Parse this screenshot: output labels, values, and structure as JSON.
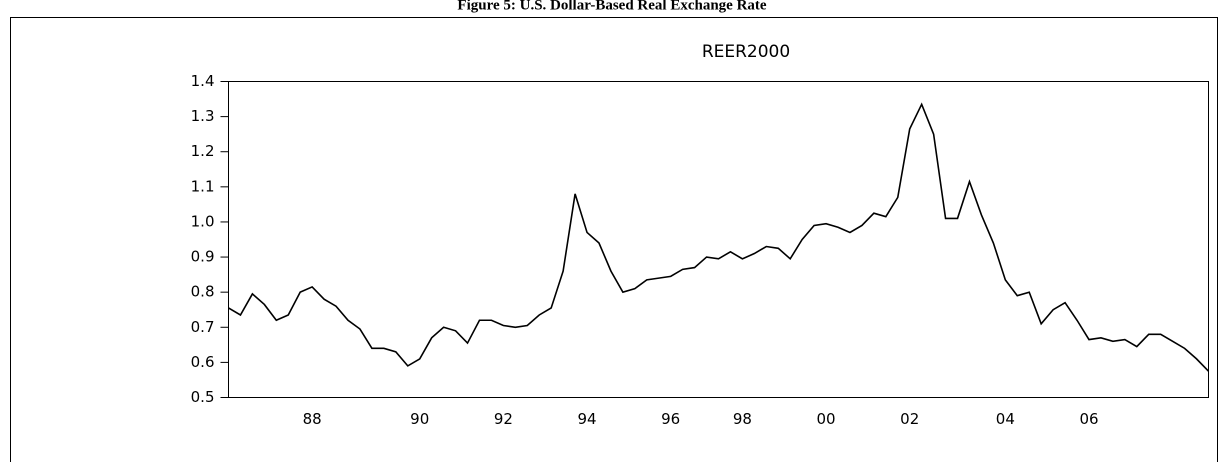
{
  "figure_title": "Figure 5: U.S. Dollar-Based Real Exchange Rate",
  "chart_data": {
    "type": "line",
    "title": "REER2000",
    "categories": [
      null,
      null,
      null,
      null,
      null,
      null,
      null,
      "88",
      null,
      null,
      null,
      null,
      null,
      null,
      null,
      null,
      "90",
      null,
      null,
      null,
      null,
      null,
      null,
      "92",
      null,
      null,
      null,
      null,
      null,
      null,
      "94",
      null,
      null,
      null,
      null,
      null,
      null,
      "96",
      null,
      null,
      null,
      null,
      null,
      "98",
      null,
      null,
      null,
      null,
      null,
      null,
      "00",
      null,
      null,
      null,
      null,
      null,
      null,
      "02",
      null,
      null,
      null,
      null,
      null,
      null,
      null,
      "04",
      null,
      null,
      null,
      null,
      null,
      null,
      "06",
      null,
      null,
      null,
      null,
      null,
      null,
      null,
      null,
      null,
      null
    ],
    "series": [
      {
        "name": "REER2000",
        "color": "#000000",
        "values": [
          0.755,
          0.735,
          0.795,
          0.765,
          0.72,
          0.735,
          0.8,
          0.815,
          0.78,
          0.76,
          0.72,
          0.695,
          0.64,
          0.64,
          0.63,
          0.59,
          0.61,
          0.67,
          0.7,
          0.69,
          0.655,
          0.72,
          0.72,
          0.705,
          0.7,
          0.705,
          0.735,
          0.755,
          0.86,
          1.08,
          0.97,
          0.94,
          0.86,
          0.8,
          0.81,
          0.835,
          0.84,
          0.845,
          0.865,
          0.87,
          0.9,
          0.895,
          0.915,
          0.895,
          0.91,
          0.93,
          0.925,
          0.895,
          0.95,
          0.99,
          0.995,
          0.985,
          0.97,
          0.99,
          1.025,
          1.015,
          1.07,
          1.265,
          1.335,
          1.25,
          1.01,
          1.01,
          1.115,
          1.02,
          0.94,
          0.835,
          0.79,
          0.8,
          0.71,
          0.75,
          0.77,
          0.72,
          0.665,
          0.67,
          0.66,
          0.665,
          0.645,
          0.68,
          0.68,
          0.66,
          0.64,
          0.61,
          0.575
        ]
      }
    ],
    "ylim": [
      0.5,
      1.4
    ],
    "yticks": [
      0.5,
      0.6,
      0.7,
      0.8,
      0.9,
      {
        "value": 1,
        "label": "1.0"
      },
      1.1,
      1.2,
      1.3,
      1.4
    ]
  }
}
